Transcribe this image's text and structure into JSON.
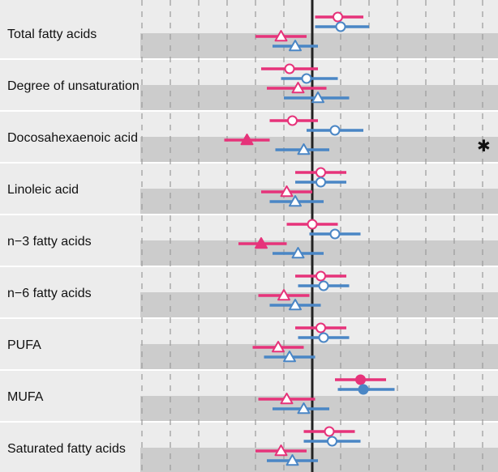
{
  "chart_data": {
    "type": "forest",
    "title": "",
    "xlabel": "",
    "ylabel": "",
    "x_range": [
      -3,
      3
    ],
    "reference_value": 0,
    "grid": "dashed vertical",
    "legend": "none",
    "colors": {
      "pink": "#e6337a",
      "blue": "#4a86c5",
      "band_light": "#ececec",
      "band_dark": "#cccccc",
      "reference_line": "#222222"
    },
    "series": [
      {
        "color": "pink",
        "marker": "circle",
        "row_position": 1
      },
      {
        "color": "blue",
        "marker": "circle",
        "row_position": 2
      },
      {
        "color": "pink",
        "marker": "triangle",
        "row_position": 3
      },
      {
        "color": "blue",
        "marker": "triangle",
        "row_position": 4
      }
    ],
    "rows": [
      {
        "label": "Total fatty acids",
        "points": [
          {
            "est": 0.45,
            "lo": 0.05,
            "hi": 0.9,
            "filled": false
          },
          {
            "est": 0.5,
            "lo": 0.05,
            "hi": 1.0,
            "filled": false
          },
          {
            "est": -0.55,
            "lo": -1.0,
            "hi": -0.1,
            "filled": false
          },
          {
            "est": -0.3,
            "lo": -0.7,
            "hi": 0.1,
            "filled": false
          }
        ]
      },
      {
        "label": "Degree of unsaturation",
        "points": [
          {
            "est": -0.4,
            "lo": -0.9,
            "hi": 0.1,
            "filled": false
          },
          {
            "est": -0.1,
            "lo": -0.55,
            "hi": 0.45,
            "filled": false
          },
          {
            "est": -0.25,
            "lo": -0.8,
            "hi": 0.25,
            "filled": false
          },
          {
            "est": 0.1,
            "lo": -0.5,
            "hi": 0.65,
            "filled": false
          }
        ]
      },
      {
        "label": "Docosahexaenoic acid",
        "points": [
          {
            "est": -0.35,
            "lo": -0.75,
            "hi": 0.1,
            "filled": false
          },
          {
            "est": 0.4,
            "lo": -0.1,
            "hi": 0.9,
            "filled": false
          },
          {
            "est": -1.15,
            "lo": -1.55,
            "hi": -0.75,
            "filled": true
          },
          {
            "est": -0.15,
            "lo": -0.65,
            "hi": 0.3,
            "filled": false
          }
        ],
        "annotation": "✱"
      },
      {
        "label": "Linoleic acid",
        "points": [
          {
            "est": 0.15,
            "lo": -0.3,
            "hi": 0.6,
            "filled": false
          },
          {
            "est": 0.15,
            "lo": -0.3,
            "hi": 0.6,
            "filled": false
          },
          {
            "est": -0.45,
            "lo": -0.9,
            "hi": 0.0,
            "filled": false
          },
          {
            "est": -0.3,
            "lo": -0.75,
            "hi": 0.2,
            "filled": false
          }
        ]
      },
      {
        "label": "n−3 fatty acids",
        "points": [
          {
            "est": 0.0,
            "lo": -0.45,
            "hi": 0.45,
            "filled": false
          },
          {
            "est": 0.4,
            "lo": -0.05,
            "hi": 0.85,
            "filled": false
          },
          {
            "est": -0.9,
            "lo": -1.3,
            "hi": -0.45,
            "filled": true
          },
          {
            "est": -0.25,
            "lo": -0.7,
            "hi": 0.2,
            "filled": false
          }
        ]
      },
      {
        "label": "n−6 fatty acids",
        "points": [
          {
            "est": 0.15,
            "lo": -0.3,
            "hi": 0.6,
            "filled": false
          },
          {
            "est": 0.2,
            "lo": -0.25,
            "hi": 0.65,
            "filled": false
          },
          {
            "est": -0.5,
            "lo": -0.95,
            "hi": -0.05,
            "filled": false
          },
          {
            "est": -0.3,
            "lo": -0.75,
            "hi": 0.15,
            "filled": false
          }
        ]
      },
      {
        "label": "PUFA",
        "points": [
          {
            "est": 0.15,
            "lo": -0.3,
            "hi": 0.6,
            "filled": false
          },
          {
            "est": 0.2,
            "lo": -0.25,
            "hi": 0.65,
            "filled": false
          },
          {
            "est": -0.6,
            "lo": -1.05,
            "hi": -0.15,
            "filled": false
          },
          {
            "est": -0.4,
            "lo": -0.85,
            "hi": 0.05,
            "filled": false
          }
        ]
      },
      {
        "label": "MUFA",
        "points": [
          {
            "est": 0.85,
            "lo": 0.4,
            "hi": 1.3,
            "filled": true
          },
          {
            "est": 0.9,
            "lo": 0.45,
            "hi": 1.45,
            "filled": true
          },
          {
            "est": -0.45,
            "lo": -0.95,
            "hi": 0.05,
            "filled": false
          },
          {
            "est": -0.15,
            "lo": -0.7,
            "hi": 0.3,
            "filled": false
          }
        ]
      },
      {
        "label": "Saturated fatty acids",
        "points": [
          {
            "est": 0.3,
            "lo": -0.15,
            "hi": 0.75,
            "filled": false
          },
          {
            "est": 0.35,
            "lo": -0.15,
            "hi": 0.85,
            "filled": false
          },
          {
            "est": -0.55,
            "lo": -1.0,
            "hi": -0.1,
            "filled": false
          },
          {
            "est": -0.35,
            "lo": -0.8,
            "hi": 0.1,
            "filled": false
          }
        ]
      }
    ]
  }
}
